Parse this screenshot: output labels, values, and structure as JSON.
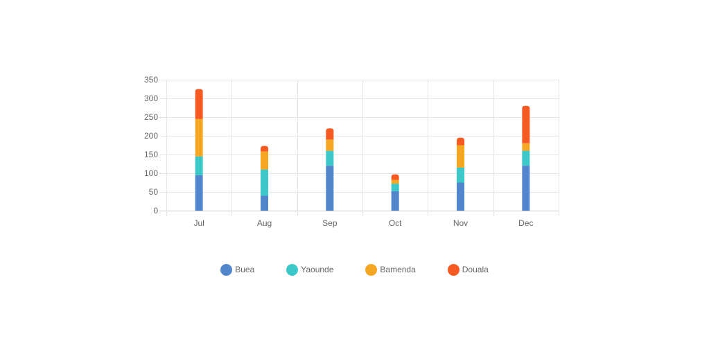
{
  "chart_data": {
    "type": "bar",
    "stacked": true,
    "categories": [
      "Jul",
      "Aug",
      "Sep",
      "Oct",
      "Nov",
      "Dec"
    ],
    "series": [
      {
        "name": "Buea",
        "color": "#5185CC",
        "values": [
          95,
          40,
          120,
          52,
          75,
          120
        ]
      },
      {
        "name": "Yaounde",
        "color": "#3CC8C8",
        "values": [
          50,
          70,
          40,
          20,
          40,
          40
        ]
      },
      {
        "name": "Bamenda",
        "color": "#F5A623",
        "values": [
          100,
          48,
          30,
          10,
          60,
          20
        ]
      },
      {
        "name": "Douala",
        "color": "#F55A22",
        "values": [
          80,
          15,
          30,
          15,
          20,
          100
        ]
      }
    ],
    "y_ticks": [
      "0",
      "50",
      "100",
      "150",
      "200",
      "250",
      "300",
      "350"
    ],
    "ylim": [
      0,
      350
    ],
    "grid": true,
    "legend_position": "bottom"
  }
}
